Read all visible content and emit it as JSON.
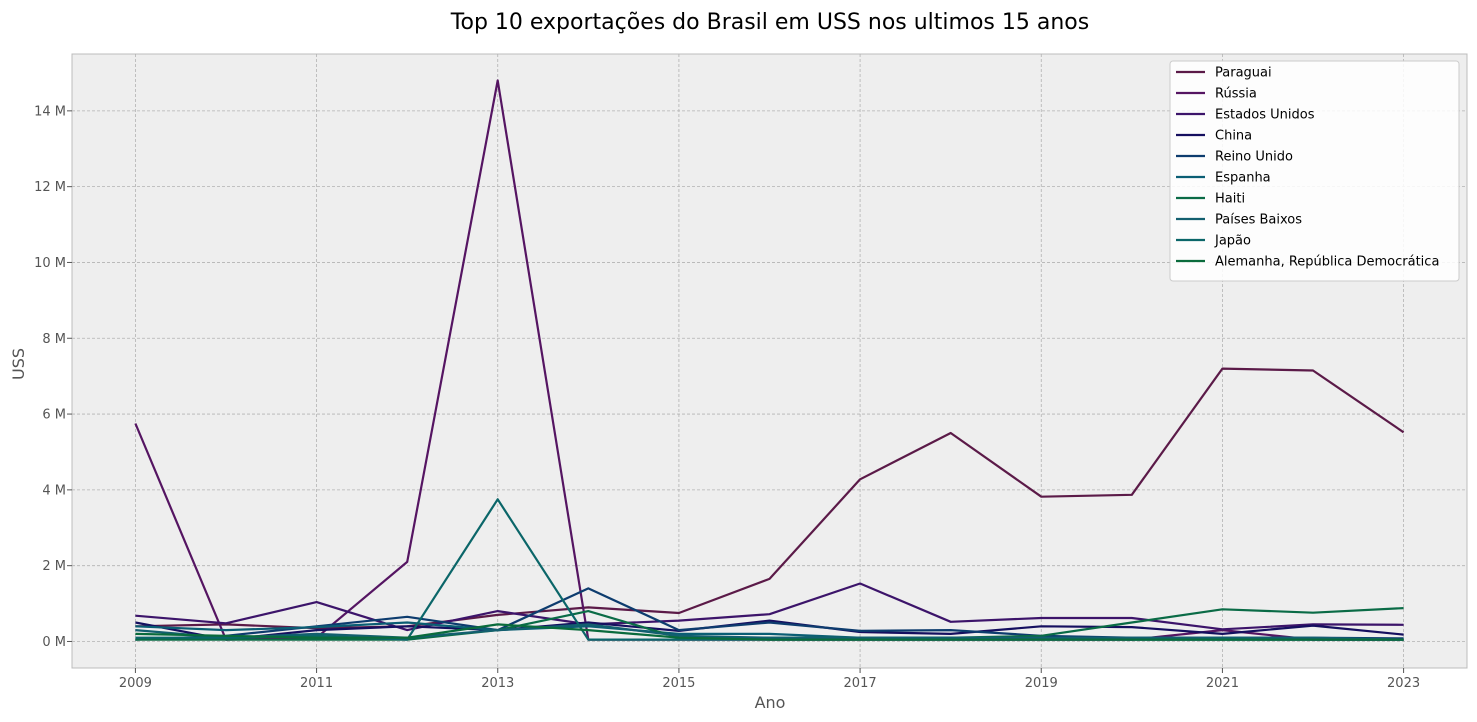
{
  "chart_data": {
    "type": "line",
    "title": "Top 10 exportações do Brasil em USS nos ultimos 15 anos",
    "xlabel": "Ano",
    "ylabel": "USS",
    "x": [
      2009,
      2010,
      2011,
      2012,
      2013,
      2014,
      2015,
      2016,
      2017,
      2018,
      2019,
      2020,
      2021,
      2022,
      2023
    ],
    "xlim": [
      2008.3,
      2023.7
    ],
    "ylim": [
      -0.7,
      15.5
    ],
    "x_ticks": [
      2009,
      2011,
      2013,
      2015,
      2017,
      2019,
      2021,
      2023
    ],
    "x_tick_labels": [
      "2009",
      "2011",
      "2013",
      "2015",
      "2017",
      "2019",
      "2021",
      "2023"
    ],
    "y_ticks": [
      0,
      2,
      4,
      6,
      8,
      10,
      12,
      14
    ],
    "y_tick_labels": [
      "0 M",
      "2 M",
      "4 M",
      "6 M",
      "8 M",
      "10 M",
      "12 M",
      "14 M"
    ],
    "y_unit": "M",
    "grid": true,
    "legend_position": "top-right",
    "background_color": "#eeeeee",
    "series": [
      {
        "name": "Paraguai",
        "color": "#5b1a48",
        "values": [
          0.4,
          0.45,
          0.35,
          0.4,
          0.7,
          0.9,
          0.75,
          1.65,
          4.28,
          5.5,
          3.82,
          3.87,
          7.2,
          7.15,
          5.52
        ]
      },
      {
        "name": "Rússia",
        "color": "#551562",
        "values": [
          5.75,
          0.05,
          0.1,
          2.1,
          14.8,
          0.05,
          0.05,
          0.05,
          0.05,
          0.05,
          0.05,
          0.05,
          0.3,
          0.05,
          0.05
        ]
      },
      {
        "name": "Estados Unidos",
        "color": "#3c146a",
        "values": [
          0.68,
          0.48,
          1.04,
          0.3,
          0.8,
          0.45,
          0.55,
          0.72,
          1.53,
          0.52,
          0.62,
          0.62,
          0.32,
          0.45,
          0.44
        ]
      },
      {
        "name": "China",
        "color": "#150f5f",
        "values": [
          0.5,
          0.05,
          0.3,
          0.4,
          0.3,
          0.5,
          0.28,
          0.55,
          0.25,
          0.2,
          0.4,
          0.38,
          0.2,
          0.42,
          0.18
        ]
      },
      {
        "name": "Reino Unido",
        "color": "#0d3c6e",
        "values": [
          0.05,
          0.15,
          0.4,
          0.65,
          0.3,
          1.4,
          0.3,
          0.5,
          0.28,
          0.3,
          0.15,
          0.1,
          0.1,
          0.1,
          0.08
        ]
      },
      {
        "name": "Espanha",
        "color": "#0a5e74",
        "values": [
          0.4,
          0.3,
          0.38,
          0.5,
          0.3,
          0.4,
          0.2,
          0.2,
          0.1,
          0.1,
          0.1,
          0.05,
          0.05,
          0.05,
          0.05
        ]
      },
      {
        "name": "Haiti",
        "color": "#0a6b46",
        "values": [
          0.05,
          0.05,
          0.05,
          0.05,
          0.3,
          0.8,
          0.1,
          0.1,
          0.1,
          0.1,
          0.15,
          0.5,
          0.85,
          0.76,
          0.88
        ]
      },
      {
        "name": "Países Baixos",
        "color": "#135f6f",
        "values": [
          0.3,
          0.1,
          0.2,
          0.1,
          0.3,
          0.45,
          0.15,
          0.1,
          0.1,
          0.1,
          0.1,
          0.1,
          0.1,
          0.1,
          0.05
        ]
      },
      {
        "name": "Japão",
        "color": "#0b6669",
        "values": [
          0.1,
          0.1,
          0.15,
          0.05,
          3.75,
          0.05,
          0.05,
          0.05,
          0.05,
          0.05,
          0.05,
          0.05,
          0.05,
          0.05,
          0.05
        ]
      },
      {
        "name": "Alemanha, República Democrática",
        "color": "#0a6b3c",
        "values": [
          0.2,
          0.15,
          0.1,
          0.1,
          0.45,
          0.3,
          0.1,
          0.05,
          0.05,
          0.05,
          0.05,
          0.05,
          0.05,
          0.05,
          0.05
        ]
      }
    ]
  }
}
